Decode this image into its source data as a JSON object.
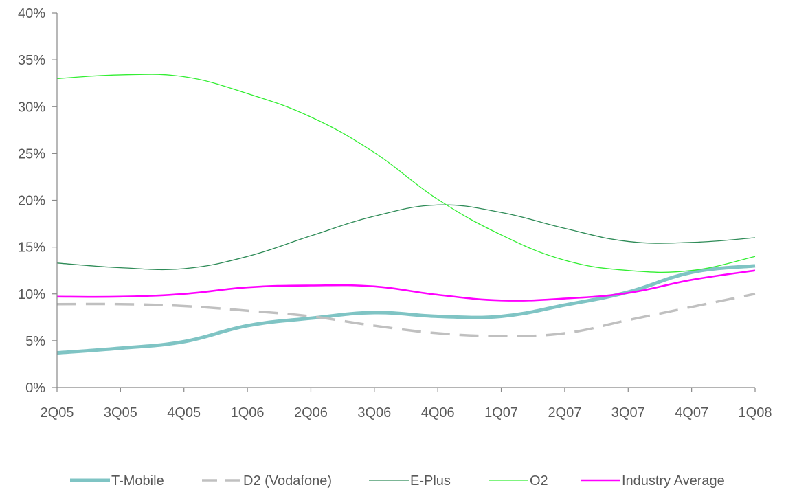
{
  "chart_data": {
    "type": "line",
    "title": "",
    "xlabel": "",
    "ylabel": "",
    "categories": [
      "2Q05",
      "3Q05",
      "4Q05",
      "1Q06",
      "2Q06",
      "3Q06",
      "4Q06",
      "1Q07",
      "2Q07",
      "3Q07",
      "4Q07",
      "1Q08"
    ],
    "y_ticks": [
      "0%",
      "5%",
      "10%",
      "15%",
      "20%",
      "25%",
      "30%",
      "35%",
      "40%"
    ],
    "ylim": [
      0,
      40
    ],
    "y_unit": "%",
    "grid": false,
    "legend_position": "bottom",
    "series": [
      {
        "name": "T-Mobile",
        "color": "#7FC4C4",
        "style": "thick",
        "values": [
          3.7,
          4.2,
          4.9,
          6.6,
          7.4,
          8.0,
          7.6,
          7.6,
          8.8,
          10.2,
          12.3,
          13.0
        ]
      },
      {
        "name": "D2 (Vodafone)",
        "color": "#C0C0C0",
        "style": "dashed",
        "values": [
          8.9,
          8.9,
          8.7,
          8.2,
          7.6,
          6.6,
          5.8,
          5.5,
          5.8,
          7.2,
          8.6,
          10.0
        ]
      },
      {
        "name": "E-Plus",
        "color": "#2E8B57",
        "style": "thin",
        "values": [
          13.3,
          12.8,
          12.7,
          14.0,
          16.2,
          18.3,
          19.5,
          18.7,
          17.0,
          15.6,
          15.5,
          16.0
        ]
      },
      {
        "name": "O2",
        "color": "#33EE33",
        "style": "thin",
        "values": [
          33.0,
          33.4,
          33.2,
          31.4,
          28.9,
          25.1,
          20.1,
          16.3,
          13.6,
          12.5,
          12.5,
          14.0
        ]
      },
      {
        "name": "Industry Average",
        "color": "#FF00FF",
        "style": "medium",
        "values": [
          9.7,
          9.7,
          10.0,
          10.7,
          10.9,
          10.8,
          9.9,
          9.3,
          9.5,
          10.1,
          11.5,
          12.5
        ]
      }
    ]
  }
}
